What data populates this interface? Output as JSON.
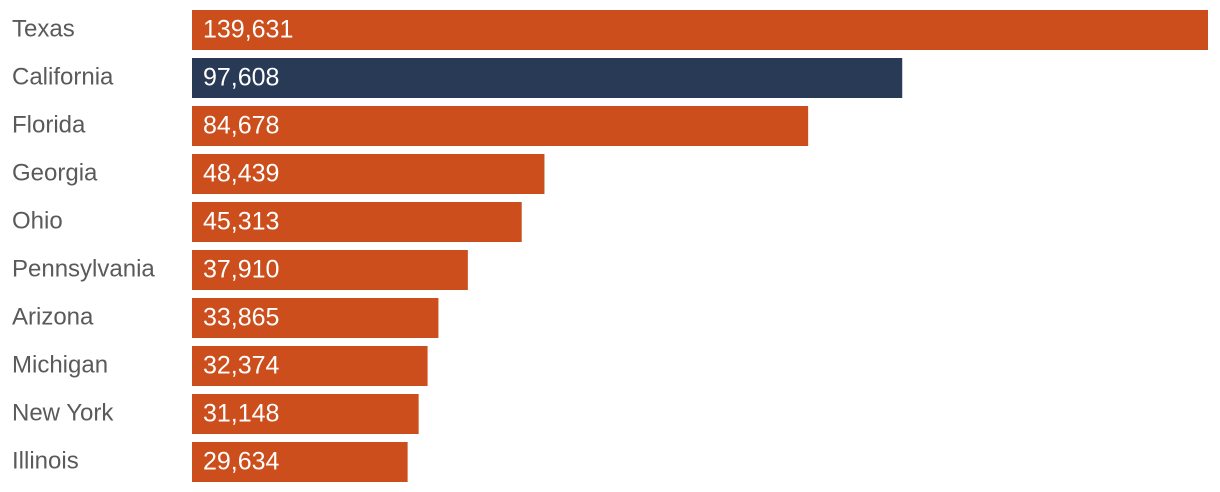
{
  "chart_data": {
    "type": "bar",
    "orientation": "horizontal",
    "categories": [
      "Texas",
      "California",
      "Florida",
      "Georgia",
      "Ohio",
      "Pennsylvania",
      "Arizona",
      "Michigan",
      "New York",
      "Illinois"
    ],
    "values": [
      139631,
      97608,
      84678,
      48439,
      45313,
      37910,
      33865,
      32374,
      31148,
      29634
    ],
    "value_labels": [
      "139,631",
      "97,608",
      "84,678",
      "48,439",
      "45,313",
      "37,910",
      "33,865",
      "32,374",
      "31,148",
      "29,634"
    ],
    "colors": [
      "#cc4e1c",
      "#283a55",
      "#cc4e1c",
      "#cc4e1c",
      "#cc4e1c",
      "#cc4e1c",
      "#cc4e1c",
      "#cc4e1c",
      "#cc4e1c",
      "#cc4e1c"
    ]
  }
}
